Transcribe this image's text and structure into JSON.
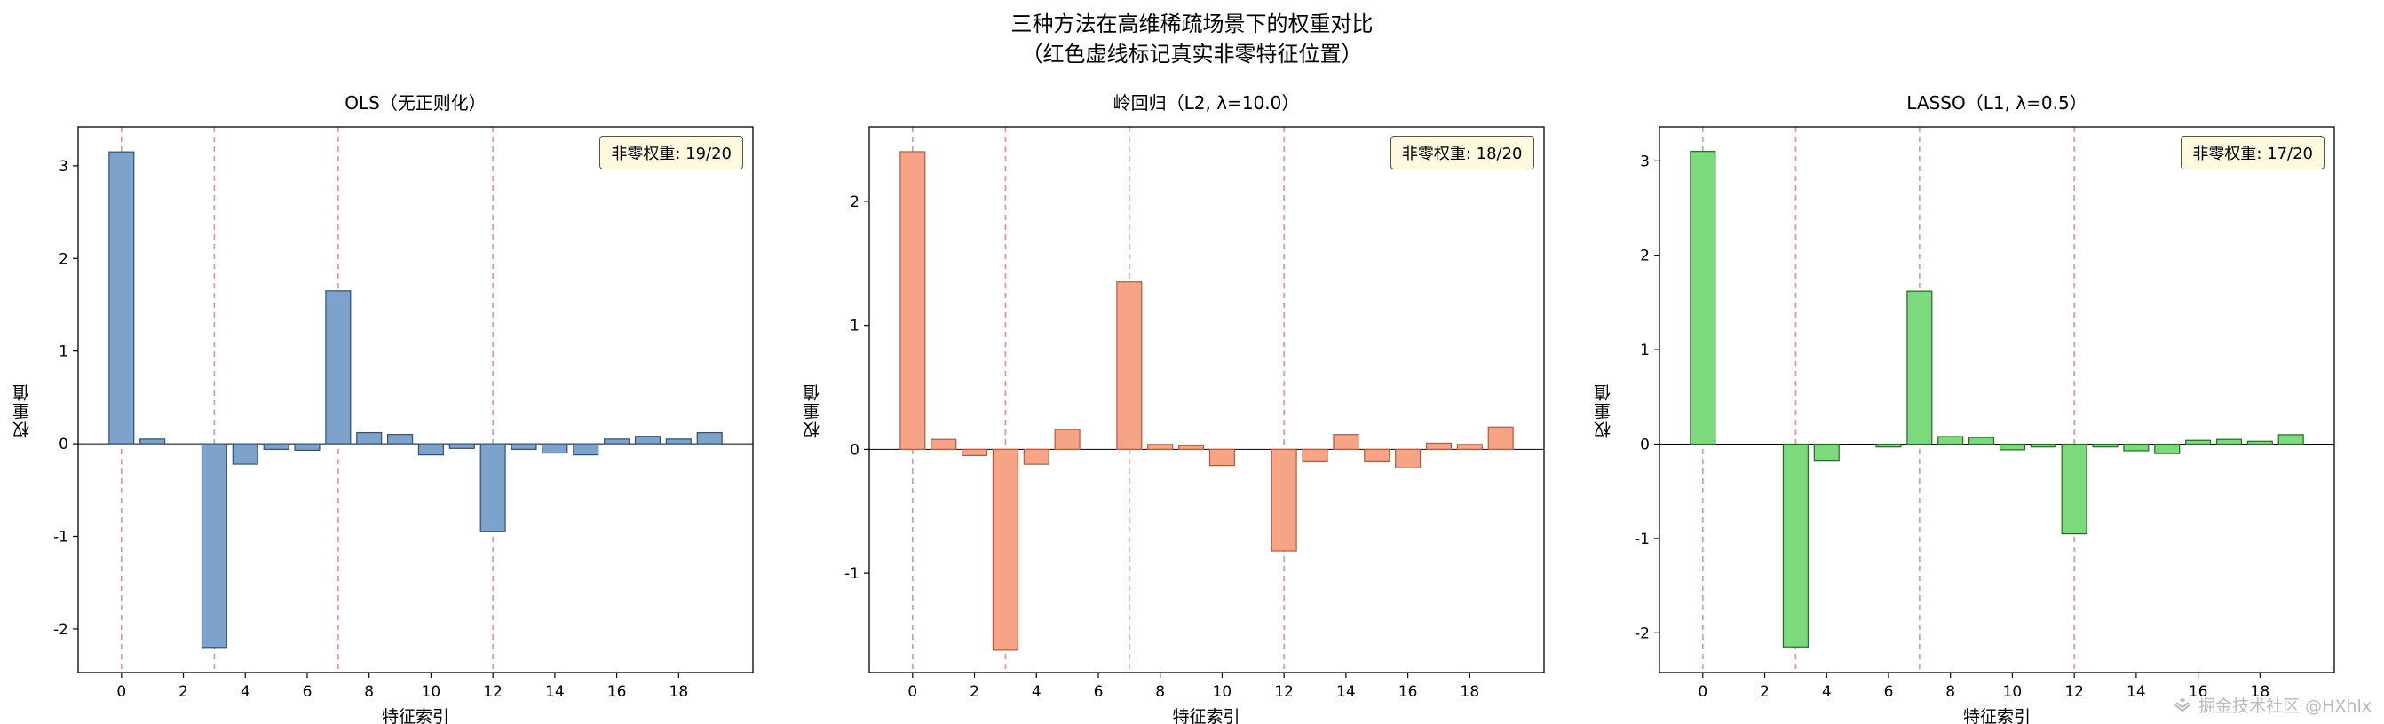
{
  "page": {
    "title_line1": "三种方法在高维稀疏场景下的权重对比",
    "title_line2": "（红色虚线标记真实非零特征位置）",
    "watermark": "掘金技术社区 @HXhlx"
  },
  "chart_data": {
    "type": "bar",
    "title": "三种方法在高维稀疏场景下的权重对比（红色虚线标记真实非零特征位置）",
    "xlim": [
      -1.4,
      20.4
    ],
    "xticks": [
      0,
      2,
      4,
      6,
      8,
      10,
      12,
      14,
      16,
      18
    ],
    "true_features": [
      0,
      3,
      7,
      12
    ],
    "bar_width": 0.8,
    "marker_color": "#ec7a74",
    "axis_color": "#000000",
    "legend_bg": "#fff9e0",
    "charts": [
      {
        "title": "OLS（无正则化）",
        "legend": "非零权重: 19/20",
        "xlabel": "特征索引",
        "ylabel": "权重值",
        "fill": "#7da3cc",
        "edge": "#2e4f78",
        "ylim": [
          -2.47,
          3.42
        ],
        "yticks": [
          -2,
          -1,
          0,
          1,
          2,
          3
        ],
        "values": [
          3.15,
          0.05,
          0,
          -2.2,
          -0.22,
          -0.06,
          -0.07,
          1.65,
          0.12,
          0.1,
          -0.12,
          -0.05,
          -0.95,
          -0.06,
          -0.1,
          -0.12,
          0.05,
          0.08,
          0.05,
          0.12
        ]
      },
      {
        "title": "岭回归（L2, λ=10.0）",
        "legend": "非零权重: 18/20",
        "xlabel": "特征索引",
        "ylabel": "权重值",
        "fill": "#f7a386",
        "edge": "#b05a40",
        "ylim": [
          -1.8,
          2.6
        ],
        "yticks": [
          -1,
          0,
          1,
          2
        ],
        "values": [
          2.4,
          0.08,
          -0.05,
          -1.62,
          -0.12,
          0.16,
          0,
          1.35,
          0.04,
          0.03,
          -0.13,
          0,
          -0.82,
          -0.1,
          0.12,
          -0.1,
          -0.15,
          0.05,
          0.04,
          0.18
        ]
      },
      {
        "title": "LASSO（L1, λ=0.5）",
        "legend": "非零权重: 17/20",
        "xlabel": "特征索引",
        "ylabel": "权重值",
        "fill": "#7cd97c",
        "edge": "#1f6b1f",
        "ylim": [
          -2.42,
          3.36
        ],
        "yticks": [
          -2,
          -1,
          0,
          1,
          2,
          3
        ],
        "values": [
          3.1,
          0,
          0,
          -2.15,
          -0.18,
          0,
          -0.03,
          1.62,
          0.08,
          0.07,
          -0.06,
          -0.03,
          -0.95,
          -0.03,
          -0.07,
          -0.1,
          0.04,
          0.05,
          0.03,
          0.1
        ]
      }
    ]
  }
}
